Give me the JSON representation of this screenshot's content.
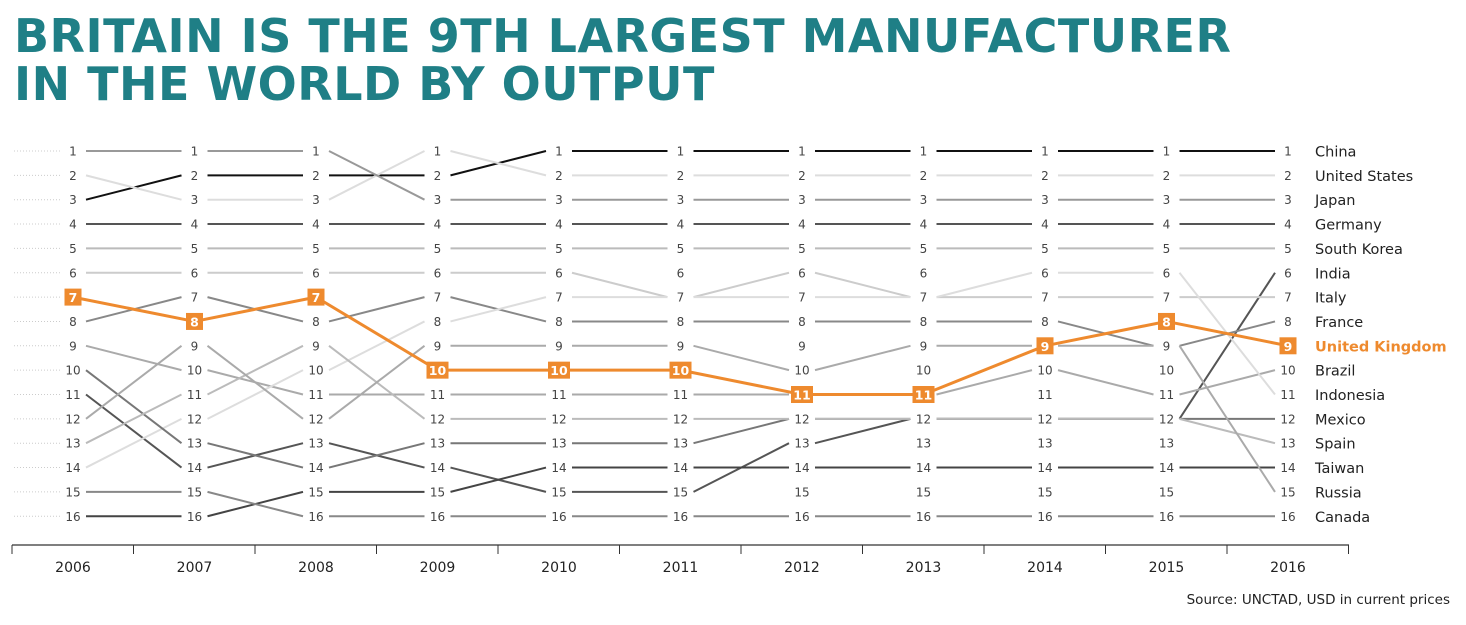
{
  "title_lines": [
    "BRITAIN IS THE 9TH LARGEST MANUFACTURER",
    "IN THE WORLD BY OUTPUT"
  ],
  "source": "Source: UNCTAD, USD in current prices",
  "colors": {
    "title": "#1f7f86",
    "highlight": "#ee8a2e",
    "text": "#222222",
    "axis": "#333333",
    "guide": "#cccccc"
  },
  "chart_data": {
    "type": "bump",
    "title": "BRITAIN IS THE 9TH LARGEST MANUFACTURER IN THE WORLD BY OUTPUT",
    "x": [
      "2006",
      "2007",
      "2008",
      "2009",
      "2010",
      "2011",
      "2012",
      "2013",
      "2014",
      "2015",
      "2016"
    ],
    "rank_labels": [
      "1",
      "2",
      "3",
      "4",
      "5",
      "6",
      "7",
      "8",
      "9",
      "10",
      "11",
      "12",
      "13",
      "14",
      "15",
      "16"
    ],
    "highlight": "United Kingdom",
    "highlight_label_years": [
      "2006",
      "2007",
      "2008",
      "2009",
      "2010",
      "2011",
      "2012",
      "2013",
      "2014",
      "2015",
      "2016"
    ],
    "series": [
      {
        "name": "China",
        "ranks": [
          3,
          2,
          2,
          2,
          1,
          1,
          1,
          1,
          1,
          1,
          1
        ],
        "color": "#111111"
      },
      {
        "name": "United States",
        "ranks": [
          2,
          3,
          3,
          1,
          2,
          2,
          2,
          2,
          2,
          2,
          2
        ],
        "color": "#dddddd"
      },
      {
        "name": "Japan",
        "ranks": [
          1,
          1,
          1,
          3,
          3,
          3,
          3,
          3,
          3,
          3,
          3
        ],
        "color": "#999999"
      },
      {
        "name": "Germany",
        "ranks": [
          4,
          4,
          4,
          4,
          4,
          4,
          4,
          4,
          4,
          4,
          4
        ],
        "color": "#555555"
      },
      {
        "name": "South Korea",
        "ranks": [
          5,
          5,
          5,
          5,
          5,
          5,
          5,
          5,
          5,
          5,
          5
        ],
        "color": "#bbbbbb"
      },
      {
        "name": "India",
        "ranks": [
          11,
          14,
          13,
          14,
          15,
          15,
          13,
          12,
          12,
          12,
          6
        ],
        "color": "#555555"
      },
      {
        "name": "Italy",
        "ranks": [
          6,
          6,
          6,
          6,
          6,
          7,
          6,
          7,
          7,
          7,
          7
        ],
        "color": "#cccccc"
      },
      {
        "name": "France",
        "ranks": [
          8,
          7,
          8,
          7,
          8,
          8,
          8,
          8,
          8,
          9,
          8
        ],
        "color": "#888888"
      },
      {
        "name": "United Kingdom",
        "ranks": [
          7,
          8,
          7,
          10,
          10,
          10,
          11,
          11,
          9,
          8,
          9
        ],
        "color": "#ee8a2e"
      },
      {
        "name": "Brazil",
        "ranks": [
          9,
          10,
          11,
          11,
          11,
          11,
          11,
          11,
          10,
          11,
          10
        ],
        "color": "#aaaaaa"
      },
      {
        "name": "Indonesia",
        "ranks": [
          14,
          12,
          10,
          8,
          7,
          7,
          7,
          7,
          6,
          6,
          11
        ],
        "color": "#dddddd"
      },
      {
        "name": "Mexico",
        "ranks": [
          10,
          13,
          14,
          13,
          13,
          13,
          12,
          12,
          12,
          12,
          12
        ],
        "color": "#777777"
      },
      {
        "name": "Spain",
        "ranks": [
          13,
          11,
          9,
          12,
          12,
          12,
          12,
          12,
          12,
          12,
          13
        ],
        "color": "#bbbbbb"
      },
      {
        "name": "Taiwan",
        "ranks": [
          16,
          16,
          15,
          15,
          14,
          14,
          14,
          14,
          14,
          14,
          14
        ],
        "color": "#444444"
      },
      {
        "name": "Russia",
        "ranks": [
          12,
          9,
          12,
          9,
          9,
          9,
          10,
          9,
          9,
          9,
          15
        ],
        "color": "#aaaaaa"
      },
      {
        "name": "Canada",
        "ranks": [
          15,
          15,
          16,
          16,
          16,
          16,
          16,
          16,
          16,
          16,
          16
        ],
        "color": "#888888"
      }
    ],
    "grid": false,
    "legend": "right"
  }
}
